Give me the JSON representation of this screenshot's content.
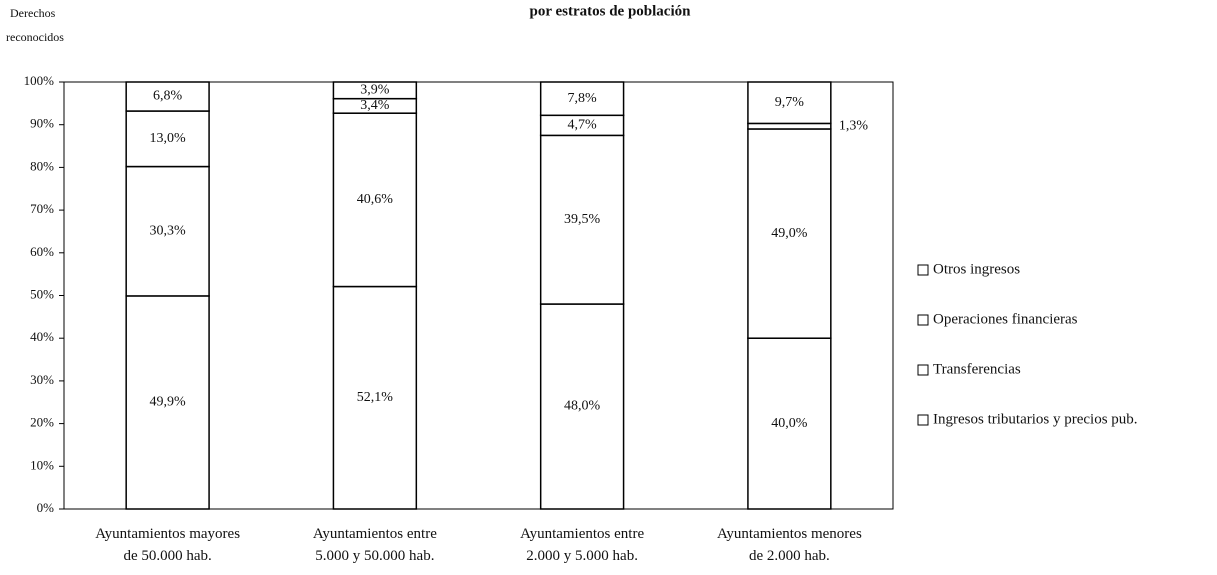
{
  "chart_data": {
    "type": "stacked_bar",
    "title": "por estratos de población",
    "y_label": [
      "Derechos",
      "reconocidos"
    ],
    "categories": [
      "Ayuntamientos mayores de 50.000 hab.",
      "Ayuntamientos entre 5.000 y 50.000 hab.",
      "Ayuntamientos entre 2.000 y 5.000 hab.",
      "Ayuntamientos menores de 2.000 hab."
    ],
    "series": [
      {
        "name": "Ingresos tributarios y precios pub.",
        "color": "#ffffff",
        "values": [
          49.9,
          52.1,
          48.0,
          40.0
        ],
        "value_labels": [
          "49,9%",
          "52,1%",
          "48,0%",
          "40,0%"
        ]
      },
      {
        "name": "Transferencias",
        "color": "#ffffff",
        "values": [
          30.3,
          40.6,
          39.5,
          49.0
        ],
        "value_labels": [
          "30,3%",
          "40,6%",
          "39,5%",
          "49,0%"
        ]
      },
      {
        "name": "Operaciones financieras",
        "color": "#ffffff",
        "values": [
          13.0,
          3.4,
          4.7,
          1.3
        ],
        "value_labels": [
          "13,0%",
          "3,4%",
          "4,7%",
          "1,3%"
        ]
      },
      {
        "name": "Otros ingresos",
        "color": "#ffffff",
        "values": [
          6.8,
          3.9,
          7.8,
          9.7
        ],
        "value_labels": [
          "6,8%",
          "3,9%",
          "7,8%",
          "9,7%"
        ]
      }
    ],
    "ylim": [
      0,
      100
    ],
    "yticks": [
      {
        "value": 0,
        "label": "0%"
      },
      {
        "value": 10,
        "label": "10%"
      },
      {
        "value": 20,
        "label": "20%"
      },
      {
        "value": 30,
        "label": "30%"
      },
      {
        "value": 40,
        "label": "40%"
      },
      {
        "value": 50,
        "label": "50%"
      },
      {
        "value": 60,
        "label": "60%"
      },
      {
        "value": 70,
        "label": "70%"
      },
      {
        "value": 80,
        "label": "80%"
      },
      {
        "value": 90,
        "label": "90%"
      },
      {
        "value": 100,
        "label": "100%"
      }
    ],
    "legend": "right"
  }
}
